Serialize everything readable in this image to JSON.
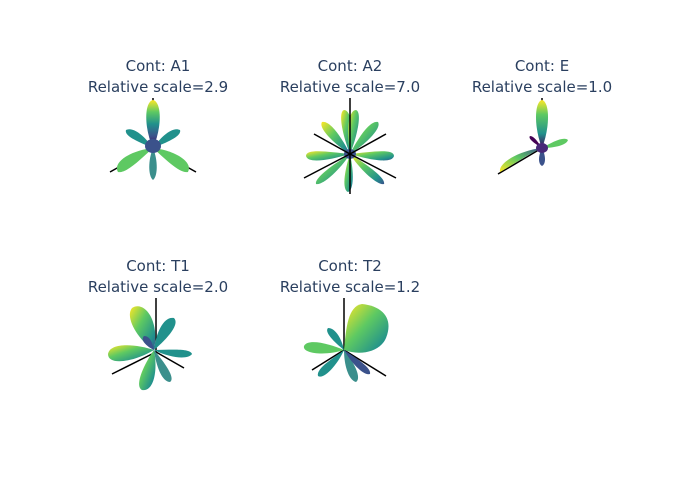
{
  "chart_data": [
    {
      "type": "3d-surface",
      "contribution": "A1",
      "title": "Cont: A1",
      "subtitle": "Relative scale=2.9",
      "relative_scale": 2.9,
      "colorscale": "viridis"
    },
    {
      "type": "3d-surface",
      "contribution": "A2",
      "title": "Cont: A2",
      "subtitle": "Relative scale=7.0",
      "relative_scale": 7.0,
      "colorscale": "viridis"
    },
    {
      "type": "3d-surface",
      "contribution": "E",
      "title": "Cont: E",
      "subtitle": "Relative scale=1.0",
      "relative_scale": 1.0,
      "colorscale": "viridis"
    },
    {
      "type": "3d-surface",
      "contribution": "T1",
      "title": "Cont: T1",
      "subtitle": "Relative scale=2.0",
      "relative_scale": 2.0,
      "colorscale": "viridis"
    },
    {
      "type": "3d-surface",
      "contribution": "T2",
      "title": "Cont: T2",
      "subtitle": "Relative scale=1.2",
      "relative_scale": 1.2,
      "colorscale": "viridis"
    }
  ],
  "colors": {
    "title_text": "#2a3f5f",
    "axis_line": "#000000",
    "viridis": [
      "#440154",
      "#3b528b",
      "#21918c",
      "#5ec962",
      "#fde725"
    ]
  }
}
